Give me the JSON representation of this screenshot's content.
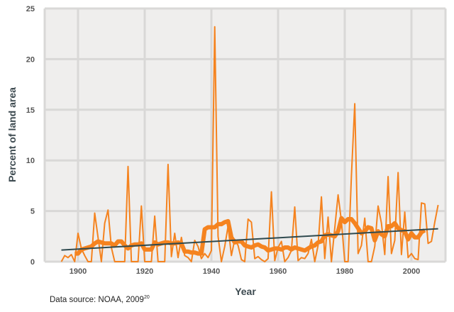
{
  "chart_data": {
    "type": "line",
    "xlabel": "Year",
    "ylabel": "Percent of land area",
    "xlim": [
      1890,
      2012
    ],
    "ylim": [
      0,
      25
    ],
    "xticks": [
      1900,
      1920,
      1940,
      1960,
      1980,
      2000
    ],
    "yticks": [
      0,
      5,
      10,
      15,
      20,
      25
    ],
    "grid": true,
    "colors": {
      "background": "#efeeed",
      "grid": "#d9d8d7",
      "annual": "#f5831f",
      "smoothed": "#f5831f",
      "trend": "#2f4a4f"
    },
    "series": [
      {
        "x_start": 1895,
        "values": [
          0,
          0.6,
          0.4,
          0.7,
          0,
          2.8,
          1.3,
          0.6,
          0,
          0,
          4.8,
          2.4,
          0,
          3.8,
          5.1,
          1.4,
          0,
          0,
          0,
          0,
          9.4,
          0,
          0,
          0,
          5.5,
          0,
          0,
          0,
          4.5,
          0,
          0,
          0,
          9.6,
          0.5,
          2.8,
          0.4,
          2.4,
          0.6,
          0.4,
          0,
          2.1,
          1.5,
          0.3,
          0.8,
          0.4,
          1.1,
          23.2,
          2.5,
          0,
          1.5,
          3.5,
          0.6,
          2.2,
          1.6,
          0.2,
          0,
          4.2,
          3.9,
          0.3,
          0.5,
          0.2,
          0,
          0.3,
          6.9,
          0.1,
          1.4,
          2.0,
          0,
          0.4,
          1.1,
          5.4,
          0.1,
          0.4,
          0.3,
          0.8,
          2.2,
          0,
          1.6,
          6.4,
          0.3,
          4.4,
          0,
          3.3,
          6.6,
          4.0,
          0,
          0,
          8.5,
          15.6,
          0.8,
          1.6,
          4.3,
          0,
          0,
          1.5,
          5.5,
          3.8,
          0.7,
          8.4,
          0.8,
          2.1,
          8.8,
          0.7,
          4.9,
          0.4,
          0.8,
          0.3,
          0.2,
          5.8,
          5.7,
          1.8,
          2.0,
          3.9,
          5.6
        ]
      },
      {
        "x_start": 1899,
        "values": [
          0.8,
          0.8,
          1.2,
          1.3,
          1.4,
          1.5,
          1.8,
          2.0,
          1.9,
          1.8,
          1.8,
          1.8,
          1.6,
          2.0,
          2.0,
          1.6,
          1.3,
          1.6,
          1.7,
          1.7,
          1.8,
          1.2,
          1.2,
          1.2,
          1.9,
          1.7,
          1.8,
          1.9,
          1.9,
          1.8,
          1.8,
          1.9,
          1.8,
          1.0,
          1.0,
          0.9,
          0.9,
          0.8,
          0.8,
          3.2,
          3.4,
          3.4,
          3.4,
          3.7,
          3.7,
          3.9,
          4.0,
          2.4,
          1.9,
          2.0,
          2.0,
          1.6,
          1.5,
          1.4,
          1.6,
          1.7,
          1.5,
          1.4,
          1.1,
          1.2,
          1.3,
          1.3,
          1.2,
          1.4,
          1.4,
          1.2,
          1.4,
          1.3,
          1.2,
          1.1,
          1.3,
          1.5,
          1.6,
          1.9,
          2.0,
          2.6,
          2.7,
          2.6,
          2.5,
          3.0,
          4.3,
          3.9,
          4.2,
          4.2,
          3.8,
          3.3,
          2.8,
          3.0,
          3.4,
          3.3,
          2.1,
          3.0,
          2.7,
          2.5,
          3.5,
          3.5,
          3.8,
          3.3,
          3.1,
          3.0,
          2.2,
          2.8,
          2.4,
          2.4,
          2.9,
          3.1
        ]
      },
      {
        "x": [
          1895,
          2008
        ],
        "values": [
          1.15,
          3.25
        ]
      }
    ]
  },
  "footnote": {
    "text": "Data source: NOAA, 2009",
    "ref": "20"
  }
}
